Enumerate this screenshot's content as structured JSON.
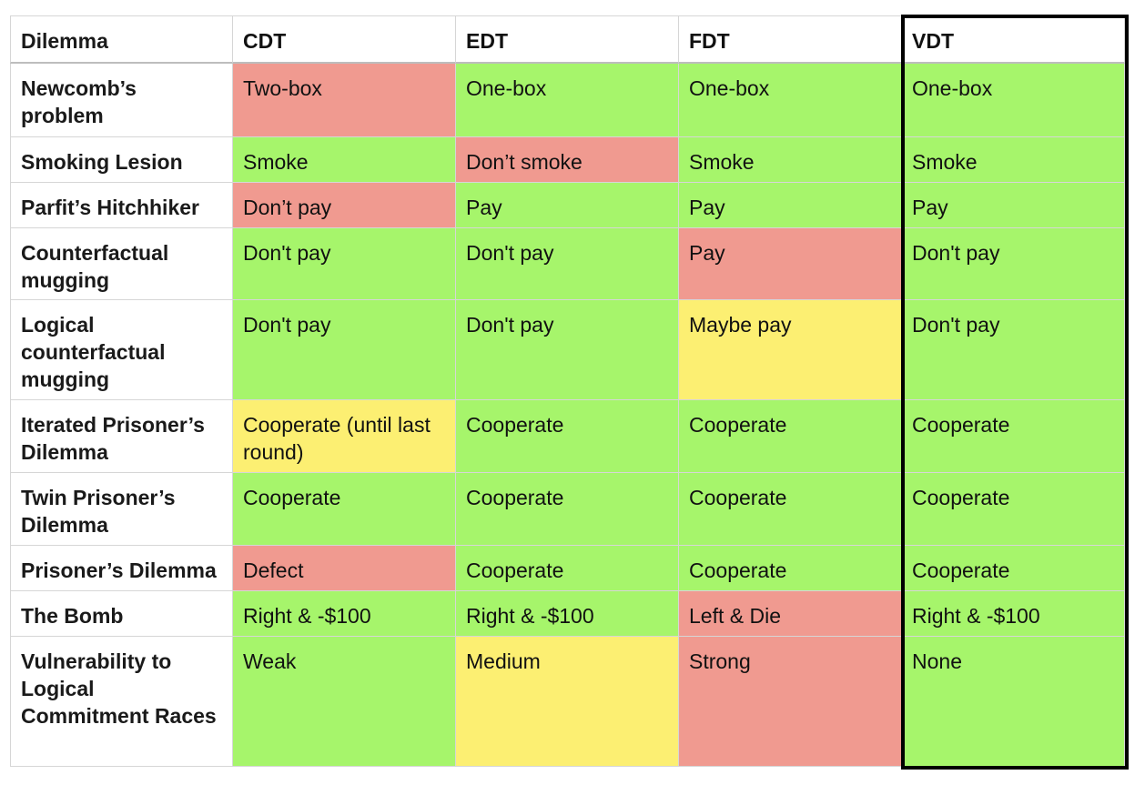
{
  "table": {
    "headers": [
      "Dilemma",
      "CDT",
      "EDT",
      "FDT",
      "VDT"
    ],
    "colors": {
      "green": "#a6f56b",
      "red": "#f09a90",
      "yellow": "#fcef72",
      "highlight_border": "#000000"
    },
    "highlighted_column": "VDT",
    "rows": [
      {
        "dilemma": "Newcomb’s problem",
        "cells": [
          {
            "text": "Two-box",
            "color": "red"
          },
          {
            "text": "One-box",
            "color": "green"
          },
          {
            "text": "One-box",
            "color": "green"
          },
          {
            "text": "One-box",
            "color": "green"
          }
        ]
      },
      {
        "dilemma": "Smoking Lesion",
        "cells": [
          {
            "text": "Smoke",
            "color": "green"
          },
          {
            "text": "Don’t smoke",
            "color": "red"
          },
          {
            "text": "Smoke",
            "color": "green"
          },
          {
            "text": "Smoke",
            "color": "green"
          }
        ]
      },
      {
        "dilemma": "Parfit’s Hitchhiker",
        "cells": [
          {
            "text": "Don’t pay",
            "color": "red"
          },
          {
            "text": "Pay",
            "color": "green"
          },
          {
            "text": "Pay",
            "color": "green"
          },
          {
            "text": "Pay",
            "color": "green"
          }
        ]
      },
      {
        "dilemma": "Counterfactual mugging",
        "cells": [
          {
            "text": "Don't pay",
            "color": "green"
          },
          {
            "text": "Don't pay",
            "color": "green"
          },
          {
            "text": "Pay",
            "color": "red"
          },
          {
            "text": "Don't pay",
            "color": "green"
          }
        ]
      },
      {
        "dilemma": "Logical counterfactual mugging",
        "cells": [
          {
            "text": "Don't pay",
            "color": "green"
          },
          {
            "text": "Don't pay",
            "color": "green"
          },
          {
            "text": "Maybe pay",
            "color": "yellow"
          },
          {
            "text": "Don't pay",
            "color": "green"
          }
        ]
      },
      {
        "dilemma": "Iterated Prisoner’s Dilemma",
        "cells": [
          {
            "text": "Cooperate (until last round)",
            "color": "yellow"
          },
          {
            "text": "Cooperate",
            "color": "green"
          },
          {
            "text": "Cooperate",
            "color": "green"
          },
          {
            "text": "Cooperate",
            "color": "green"
          }
        ]
      },
      {
        "dilemma": "Twin Prisoner’s Dilemma",
        "cells": [
          {
            "text": "Cooperate",
            "color": "green"
          },
          {
            "text": "Cooperate",
            "color": "green"
          },
          {
            "text": "Cooperate",
            "color": "green"
          },
          {
            "text": "Cooperate",
            "color": "green"
          }
        ]
      },
      {
        "dilemma": "Prisoner’s Dilemma",
        "cells": [
          {
            "text": "Defect",
            "color": "red"
          },
          {
            "text": "Cooperate",
            "color": "green"
          },
          {
            "text": "Cooperate",
            "color": "green"
          },
          {
            "text": "Cooperate",
            "color": "green"
          }
        ]
      },
      {
        "dilemma": "The Bomb",
        "cells": [
          {
            "text": "Right & -$100",
            "color": "green"
          },
          {
            "text": "Right & -$100",
            "color": "green"
          },
          {
            "text": "Left & Die",
            "color": "red"
          },
          {
            "text": "Right & -$100",
            "color": "green"
          }
        ]
      },
      {
        "dilemma": "Vulnerability to Logical Commitment Races",
        "cells": [
          {
            "text": "Weak",
            "color": "green"
          },
          {
            "text": "Medium",
            "color": "yellow"
          },
          {
            "text": "Strong",
            "color": "red"
          },
          {
            "text": "None",
            "color": "green"
          }
        ]
      }
    ]
  }
}
